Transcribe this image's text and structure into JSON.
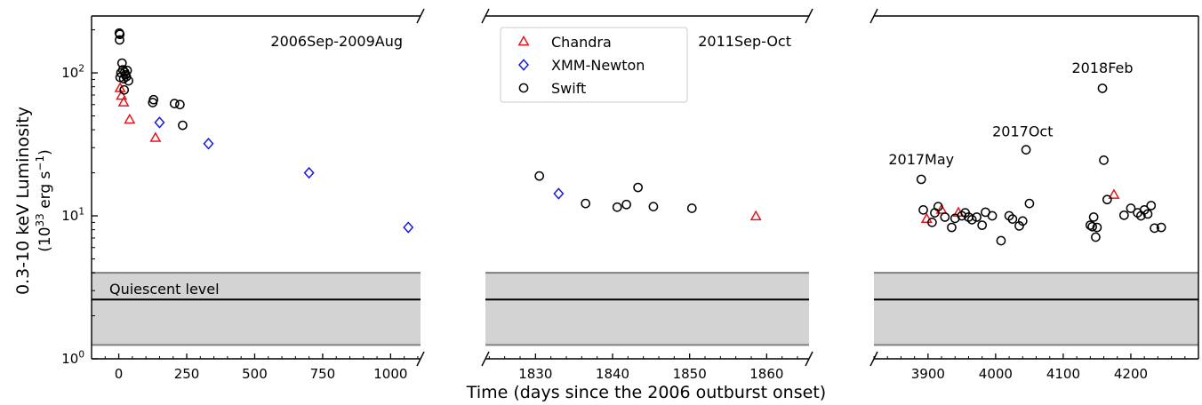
{
  "chart_data": {
    "type": "scatter",
    "y_scale": "log",
    "ylim": [
      1,
      250
    ],
    "ylabel_line1": "0.3-10 keV Luminosity",
    "ylabel_line2_base": "(10",
    "ylabel_line2_exp": "33",
    "ylabel_line2_mid": " erg s",
    "ylabel_line2_exp2": "−1",
    "ylabel_line2_end": ")",
    "xlabel": "Time (days since the 2006 outburst onset)",
    "y_ticks": [
      {
        "value": 1,
        "base": "10",
        "exp": "0"
      },
      {
        "value": 10,
        "base": "10",
        "exp": "1"
      },
      {
        "value": 100,
        "base": "10",
        "exp": "2"
      }
    ],
    "quiescent": {
      "level": 2.6,
      "low": 1.25,
      "high": 4.0,
      "label": "Quiescent level"
    },
    "colors": {
      "Chandra": "#e8141c",
      "XMM-Newton": "#1a1adb",
      "Swift": "#000000",
      "band": "#d3d3d3",
      "band_edge": "#808080"
    },
    "legend": {
      "placement": "upper-left of middle panel",
      "entries": [
        {
          "name": "Chandra",
          "marker": "triangle"
        },
        {
          "name": "XMM-Newton",
          "marker": "diamond"
        },
        {
          "name": "Swift",
          "marker": "circle"
        }
      ]
    },
    "panels": [
      {
        "id": "p1",
        "title": "2006Sep-2009Aug",
        "xlim": [
          -100,
          1110
        ],
        "x_ticks": [
          0,
          250,
          500,
          750,
          1000
        ],
        "series": [
          {
            "name": "Chandra",
            "points": [
              [
                5,
                78
              ],
              [
                10,
                69
              ],
              [
                18,
                62
              ],
              [
                40,
                47
              ],
              [
                135,
                35
              ]
            ]
          },
          {
            "name": "XMM-Newton",
            "points": [
              [
                150,
                45
              ],
              [
                330,
                32
              ],
              [
                700,
                20
              ],
              [
                1065,
                8.3
              ]
            ]
          },
          {
            "name": "Swift",
            "points": [
              [
                2,
                190
              ],
              [
                4,
                186
              ],
              [
                3,
                170
              ],
              [
                5,
                93
              ],
              [
                8,
                100
              ],
              [
                12,
                117
              ],
              [
                15,
                105
              ],
              [
                18,
                91
              ],
              [
                20,
                76
              ],
              [
                22,
                101
              ],
              [
                25,
                97
              ],
              [
                28,
                94
              ],
              [
                31,
                104
              ],
              [
                36,
                88
              ],
              [
                125,
                62
              ],
              [
                128,
                65
              ],
              [
                205,
                61
              ],
              [
                225,
                60
              ],
              [
                235,
                43
              ]
            ]
          }
        ],
        "annotations": []
      },
      {
        "id": "p2",
        "title": "2011Sep-Oct",
        "xlim": [
          1823.5,
          1865.5
        ],
        "x_ticks": [
          1830,
          1840,
          1850,
          1860
        ],
        "series": [
          {
            "name": "Chandra",
            "points": [
              [
                1858.6,
                9.9
              ]
            ]
          },
          {
            "name": "XMM-Newton",
            "points": [
              [
                1833,
                14.3
              ]
            ]
          },
          {
            "name": "Swift",
            "points": [
              [
                1830.5,
                19
              ],
              [
                1836.5,
                12.2
              ],
              [
                1840.6,
                11.5
              ],
              [
                1841.8,
                12
              ],
              [
                1843.3,
                15.8
              ],
              [
                1845.3,
                11.6
              ],
              [
                1850.3,
                11.3
              ]
            ]
          }
        ],
        "annotations": []
      },
      {
        "id": "p3",
        "title": "",
        "xlim": [
          3820,
          4300
        ],
        "x_ticks": [
          3900,
          4000,
          4100,
          4200
        ],
        "series": [
          {
            "name": "Chandra",
            "points": [
              [
                3898,
                9.5
              ],
              [
                3920,
                11
              ],
              [
                3945,
                10.5
              ],
              [
                4175,
                14
              ]
            ]
          },
          {
            "name": "XMM-Newton",
            "points": []
          },
          {
            "name": "Swift",
            "points": [
              [
                3890,
                18
              ],
              [
                3893,
                11
              ],
              [
                3906,
                9
              ],
              [
                3910,
                10.5
              ],
              [
                3915,
                11.6
              ],
              [
                3925,
                9.8
              ],
              [
                3935,
                8.3
              ],
              [
                3940,
                9.6
              ],
              [
                3950,
                10
              ],
              [
                3955,
                10.5
              ],
              [
                3960,
                9.8
              ],
              [
                3965,
                9.4
              ],
              [
                3972,
                9.8
              ],
              [
                3980,
                8.6
              ],
              [
                3985,
                10.6
              ],
              [
                3995,
                10
              ],
              [
                4008,
                6.7
              ],
              [
                4020,
                10
              ],
              [
                4025,
                9.5
              ],
              [
                4035,
                8.5
              ],
              [
                4040,
                9.2
              ],
              [
                4045,
                29
              ],
              [
                4050,
                12.2
              ],
              [
                4140,
                8.6
              ],
              [
                4143,
                8.4
              ],
              [
                4145,
                9.8
              ],
              [
                4148,
                7.1
              ],
              [
                4150,
                8.3
              ],
              [
                4158,
                78
              ],
              [
                4160,
                24.5
              ],
              [
                4165,
                13
              ],
              [
                4190,
                10.1
              ],
              [
                4200,
                11.3
              ],
              [
                4210,
                10.5
              ],
              [
                4215,
                10
              ],
              [
                4220,
                11
              ],
              [
                4225,
                10.3
              ],
              [
                4230,
                11.8
              ],
              [
                4235,
                8.2
              ],
              [
                4245,
                8.3
              ]
            ]
          }
        ],
        "annotations": [
          {
            "text": "2017May",
            "x": 3890,
            "y": 23
          },
          {
            "text": "2017Oct",
            "x": 4040,
            "y": 36
          },
          {
            "text": "2018Feb",
            "x": 4158,
            "y": 100
          }
        ]
      }
    ]
  }
}
